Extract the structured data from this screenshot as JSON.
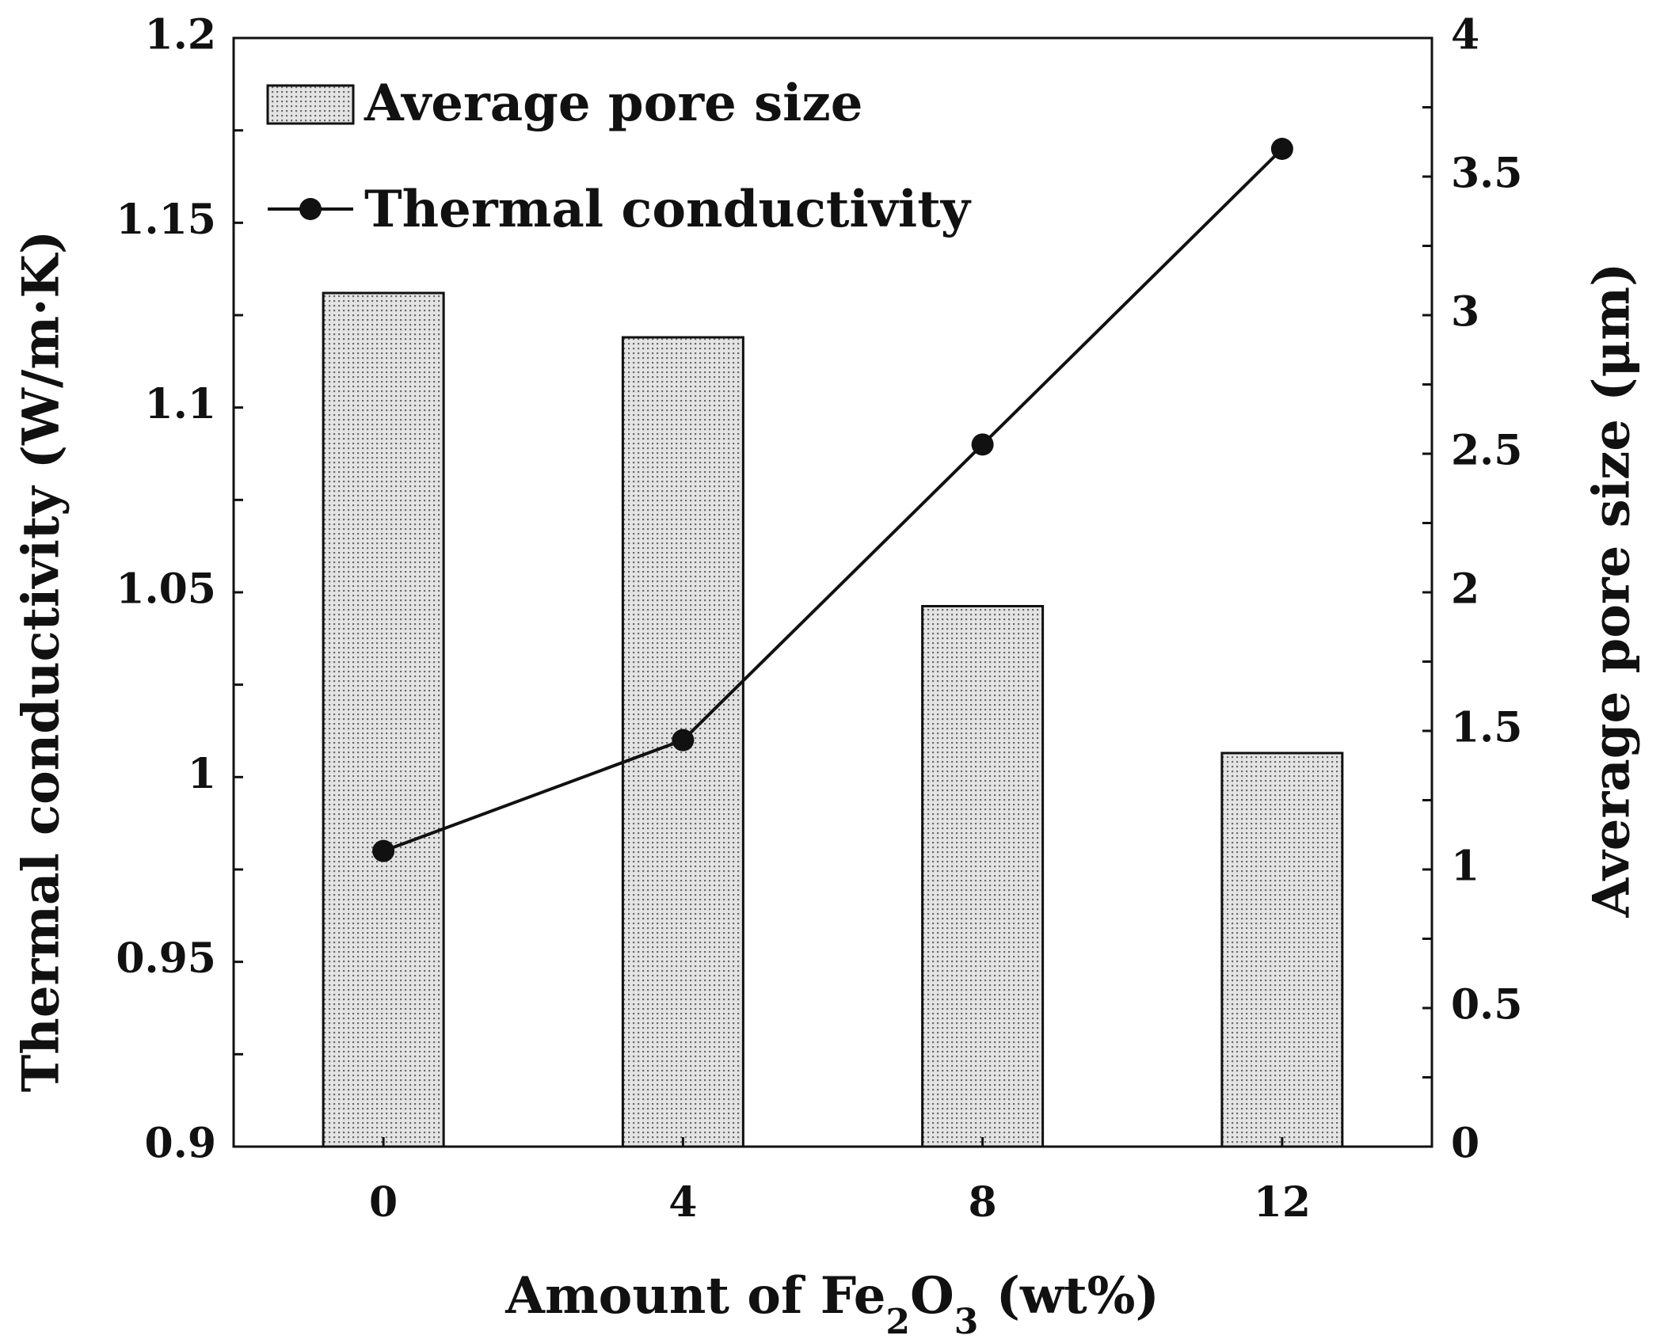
{
  "chart_data": {
    "type": "bar+line",
    "categories": [
      "0",
      "4",
      "8",
      "12"
    ],
    "x": [
      0,
      4,
      8,
      12
    ],
    "series": [
      {
        "name": "Average pore size",
        "kind": "bar",
        "axis": "right",
        "values": [
          3.08,
          2.92,
          1.95,
          1.42
        ]
      },
      {
        "name": "Thermal conductivity",
        "kind": "line",
        "axis": "left",
        "values": [
          0.98,
          1.01,
          1.09,
          1.17
        ]
      }
    ],
    "xlabel": {
      "prefix": "Amount of Fe",
      "sub1": "2",
      "mid": "O",
      "sub2": "3",
      "suffix": " (wt%)"
    },
    "ylabel_left": "Thermal conductivity (W/m·K)",
    "ylabel_right": "Average pore size (μm)",
    "ylim_left": [
      0.9,
      1.2
    ],
    "ylim_right": [
      0,
      4
    ],
    "yticks_left": [
      "0.9",
      "0.95",
      "1",
      "1.05",
      "1.1",
      "1.15",
      "1.2"
    ],
    "yticks_right": [
      "0",
      "0.5",
      "1",
      "1.5",
      "2",
      "2.5",
      "3",
      "3.5",
      "4"
    ],
    "legend_position": "top-left",
    "colors": {
      "ink": "#111111",
      "bar_fill": "#e4e4e4",
      "bar_dot": "#6a6a6a",
      "background": "#ffffff"
    }
  }
}
